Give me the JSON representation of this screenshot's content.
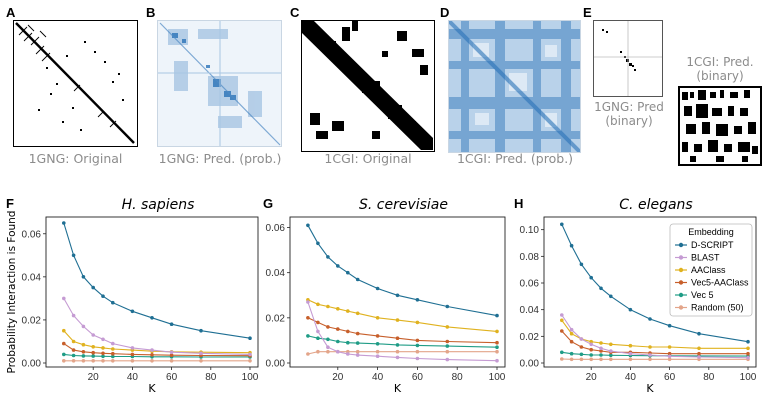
{
  "panels": {
    "a": {
      "letter": "A",
      "caption": "1GNG: Original"
    },
    "b": {
      "letter": "B",
      "caption": "1GNG: Pred. (prob.)"
    },
    "c": {
      "letter": "C",
      "caption": "1CGI: Original"
    },
    "d": {
      "letter": "D",
      "caption": "1CGI: Pred. (prob.)"
    },
    "e": {
      "letter": "E",
      "caption_small": "1GNG: Pred (binary)",
      "caption_large": "1CGI: Pred. (binary)"
    },
    "f": {
      "letter": "F"
    },
    "g": {
      "letter": "G"
    },
    "h": {
      "letter": "H"
    }
  },
  "colors": {
    "D-SCRIPT": "#1f6f93",
    "BLAST": "#c59bd3",
    "AAClass": "#e0b21f",
    "Vec5-AAClass": "#c75f2b",
    "Vec 5": "#1f9c86",
    "Random (50)": "#e3a58a",
    "heat": "#2b73b8"
  },
  "chart_data": [
    {
      "type": "line",
      "title": "H. sapiens",
      "xlabel": "K",
      "ylabel": "Probability Interaction is Found",
      "x": [
        5,
        10,
        15,
        20,
        25,
        30,
        40,
        50,
        60,
        75,
        100
      ],
      "xlim": [
        0,
        100
      ],
      "xticks": [
        20,
        40,
        60,
        80,
        100
      ],
      "ylim": [
        0,
        0.065
      ],
      "yticks": [
        "0.00",
        "0.02",
        "0.04",
        "0.06"
      ],
      "ytick_values": [
        0,
        0.02,
        0.04,
        0.06
      ],
      "series": [
        {
          "name": "D-SCRIPT",
          "values": [
            0.065,
            0.05,
            0.04,
            0.035,
            0.031,
            0.028,
            0.024,
            0.021,
            0.018,
            0.015,
            0.0115
          ]
        },
        {
          "name": "BLAST",
          "values": [
            0.03,
            0.022,
            0.017,
            0.013,
            0.011,
            0.009,
            0.007,
            0.006,
            0.005,
            0.0045,
            0.004
          ]
        },
        {
          "name": "AAClass",
          "values": [
            0.015,
            0.01,
            0.0085,
            0.0075,
            0.007,
            0.0065,
            0.006,
            0.0055,
            0.0052,
            0.005,
            0.0048
          ]
        },
        {
          "name": "Vec5-AAClass",
          "values": [
            0.009,
            0.006,
            0.0052,
            0.0048,
            0.0045,
            0.0043,
            0.004,
            0.0038,
            0.0036,
            0.0035,
            0.0034
          ]
        },
        {
          "name": "Vec 5",
          "values": [
            0.004,
            0.0035,
            0.0033,
            0.0032,
            0.0031,
            0.003,
            0.003,
            0.0029,
            0.0029,
            0.0028,
            0.0028
          ]
        },
        {
          "name": "Random (50)",
          "values": [
            0.001,
            0.001,
            0.001,
            0.001,
            0.001,
            0.001,
            0.001,
            0.001,
            0.001,
            0.001,
            0.001
          ]
        }
      ]
    },
    {
      "type": "line",
      "title": "S. cerevisiae",
      "xlabel": "K",
      "x": [
        5,
        10,
        15,
        20,
        25,
        30,
        40,
        50,
        60,
        75,
        100
      ],
      "xlim": [
        0,
        100
      ],
      "xticks": [
        20,
        40,
        60,
        80,
        100
      ],
      "ylim": [
        0,
        0.062
      ],
      "yticks": [
        "0.00",
        "0.02",
        "0.04",
        "0.06"
      ],
      "ytick_values": [
        0,
        0.02,
        0.04,
        0.06
      ],
      "series": [
        {
          "name": "D-SCRIPT",
          "values": [
            0.061,
            0.053,
            0.047,
            0.043,
            0.04,
            0.037,
            0.033,
            0.03,
            0.028,
            0.025,
            0.021
          ]
        },
        {
          "name": "BLAST",
          "values": [
            0.027,
            0.014,
            0.007,
            0.005,
            0.004,
            0.0035,
            0.003,
            0.0025,
            0.002,
            0.0015,
            0.001
          ]
        },
        {
          "name": "AAClass",
          "values": [
            0.028,
            0.026,
            0.025,
            0.024,
            0.023,
            0.022,
            0.02,
            0.019,
            0.018,
            0.016,
            0.014
          ]
        },
        {
          "name": "Vec5-AAClass",
          "values": [
            0.02,
            0.018,
            0.016,
            0.015,
            0.014,
            0.013,
            0.012,
            0.011,
            0.01,
            0.0095,
            0.009
          ]
        },
        {
          "name": "Vec 5",
          "values": [
            0.012,
            0.011,
            0.0105,
            0.0095,
            0.009,
            0.0088,
            0.0085,
            0.008,
            0.0078,
            0.0075,
            0.007
          ]
        },
        {
          "name": "Random (50)",
          "values": [
            0.004,
            0.005,
            0.005,
            0.005,
            0.005,
            0.005,
            0.005,
            0.005,
            0.005,
            0.005,
            0.005
          ]
        }
      ]
    },
    {
      "type": "line",
      "title": "C. elegans",
      "xlabel": "K",
      "x": [
        5,
        10,
        15,
        20,
        25,
        30,
        40,
        50,
        60,
        75,
        100
      ],
      "xlim": [
        0,
        100
      ],
      "xticks": [
        20,
        40,
        60,
        80,
        100
      ],
      "ylim": [
        0,
        0.105
      ],
      "yticks": [
        "0.00",
        "0.02",
        "0.04",
        "0.06",
        "0.08",
        "0.10"
      ],
      "ytick_values": [
        0,
        0.02,
        0.04,
        0.06,
        0.08,
        0.1
      ],
      "legend": {
        "title": "Embedding",
        "position": "top-right"
      },
      "series": [
        {
          "name": "D-SCRIPT",
          "values": [
            0.104,
            0.088,
            0.074,
            0.064,
            0.056,
            0.05,
            0.04,
            0.033,
            0.028,
            0.022,
            0.016
          ]
        },
        {
          "name": "BLAST",
          "values": [
            0.036,
            0.025,
            0.018,
            0.014,
            0.011,
            0.009,
            0.007,
            0.006,
            0.005,
            0.0045,
            0.004
          ]
        },
        {
          "name": "AAClass",
          "values": [
            0.032,
            0.022,
            0.018,
            0.016,
            0.015,
            0.014,
            0.013,
            0.012,
            0.012,
            0.011,
            0.011
          ]
        },
        {
          "name": "Vec5-AAClass",
          "values": [
            0.024,
            0.016,
            0.012,
            0.01,
            0.009,
            0.008,
            0.008,
            0.0075,
            0.007,
            0.007,
            0.007
          ]
        },
        {
          "name": "Vec 5",
          "values": [
            0.008,
            0.007,
            0.0065,
            0.006,
            0.006,
            0.0058,
            0.0056,
            0.0055,
            0.0054,
            0.0053,
            0.0052
          ]
        },
        {
          "name": "Random (50)",
          "values": [
            0.003,
            0.0028,
            0.0028,
            0.0028,
            0.0028,
            0.0028,
            0.0028,
            0.0028,
            0.0028,
            0.0028,
            0.0028
          ]
        }
      ]
    }
  ]
}
